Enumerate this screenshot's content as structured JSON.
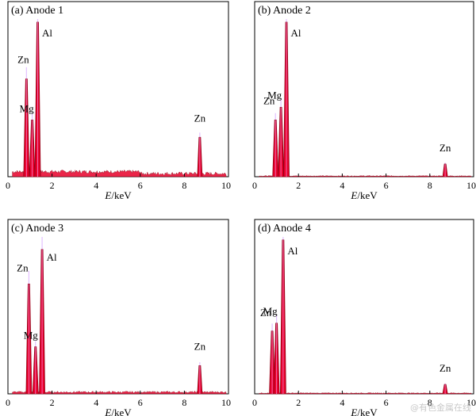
{
  "chart_data": [
    {
      "type": "line",
      "title": "(a) Anode 1",
      "xlabel_italic": "E",
      "xlabel_unit": "/keV",
      "xlim": [
        0,
        10
      ],
      "xticks": [
        0,
        2,
        4,
        6,
        8,
        10
      ],
      "ylabel": "",
      "peaks": [
        {
          "label": "Zn",
          "energy": 0.84,
          "height": 0.62
        },
        {
          "label": "Mg",
          "energy": 1.1,
          "height": 0.36
        },
        {
          "label": "Al",
          "energy": 1.35,
          "height": 0.98
        },
        {
          "label": "Zn",
          "energy": 8.7,
          "height": 0.25
        }
      ],
      "background": "high"
    },
    {
      "type": "line",
      "title": "(b) Anode 2",
      "xlabel_italic": "E",
      "xlabel_unit": "/keV",
      "xlim": [
        0,
        10
      ],
      "xticks": [
        0,
        2,
        4,
        6,
        8,
        10
      ],
      "ylabel": "",
      "peaks": [
        {
          "label": "Zn",
          "energy": 0.95,
          "height": 0.36
        },
        {
          "label": "Mg",
          "energy": 1.2,
          "height": 0.44
        },
        {
          "label": "Al",
          "energy": 1.45,
          "height": 0.98
        },
        {
          "label": "Zn",
          "energy": 8.7,
          "height": 0.08
        }
      ],
      "background": "low"
    },
    {
      "type": "line",
      "title": "(c) Anode 3",
      "xlabel_italic": "E",
      "xlabel_unit": "/keV",
      "xlim": [
        0,
        10
      ],
      "xticks": [
        0,
        2,
        4,
        6,
        8,
        10
      ],
      "ylabel": "",
      "peaks": [
        {
          "label": "Zn",
          "energy": 0.95,
          "height": 0.7
        },
        {
          "label": "Mg",
          "energy": 1.25,
          "height": 0.3
        },
        {
          "label": "Al",
          "energy": 1.55,
          "height": 0.92
        },
        {
          "label": "Zn",
          "energy": 8.7,
          "height": 0.18
        }
      ],
      "background": "medium"
    },
    {
      "type": "line",
      "title": "(d) Anode 4",
      "xlabel_italic": "E",
      "xlabel_unit": "/keV",
      "xlim": [
        0,
        10
      ],
      "xticks": [
        0,
        2,
        4,
        6,
        8,
        10
      ],
      "ylabel": "",
      "peaks": [
        {
          "label": "Zn",
          "energy": 0.8,
          "height": 0.4
        },
        {
          "label": "Mg",
          "energy": 1.0,
          "height": 0.45
        },
        {
          "label": "Al",
          "energy": 1.3,
          "height": 0.98
        },
        {
          "label": "Zn",
          "energy": 8.7,
          "height": 0.06
        }
      ],
      "background": "low"
    }
  ],
  "colors": {
    "spectrum_fill": "#e8002a",
    "spectrum_alt": "#f06ab0",
    "spectrum_dark": "#8a0014",
    "spectrum_ghost": "#d7a6ff",
    "axis": "#000000",
    "watermark": "#c9c9c9"
  },
  "watermark": "@有色金属在线"
}
